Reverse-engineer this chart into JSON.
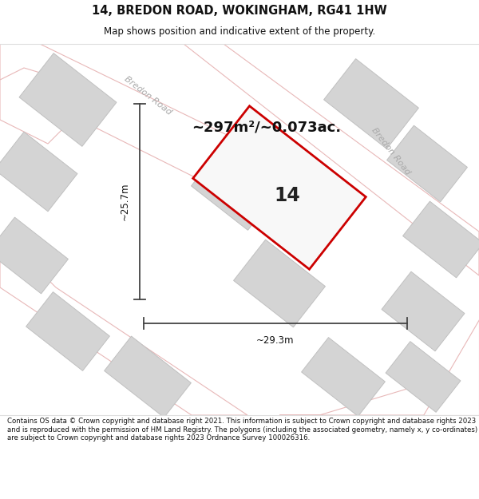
{
  "title": "14, BREDON ROAD, WOKINGHAM, RG41 1HW",
  "subtitle": "Map shows position and indicative extent of the property.",
  "area_text": "~297m²/~0.073ac.",
  "label_number": "14",
  "dim_width": "~29.3m",
  "dim_height": "~25.7m",
  "footer": "Contains OS data © Crown copyright and database right 2021. This information is subject to Crown copyright and database rights 2023 and is reproduced with the permission of HM Land Registry. The polygons (including the associated geometry, namely x, y co-ordinates) are subject to Crown copyright and database rights 2023 Ordnance Survey 100026316.",
  "bg_color": "#ffffff",
  "map_bg": "#f2f2f2",
  "road_fill": "#ffffff",
  "road_stroke": "#e8b8b8",
  "building_fill": "#d4d4d4",
  "building_stroke": "#c0c0c0",
  "plot_stroke": "#cc0000",
  "plot_fill": "#f8f8f8",
  "dim_line_color": "#444444",
  "road_label_color": "#aaaaaa",
  "title_color": "#111111",
  "footer_color": "#111111"
}
